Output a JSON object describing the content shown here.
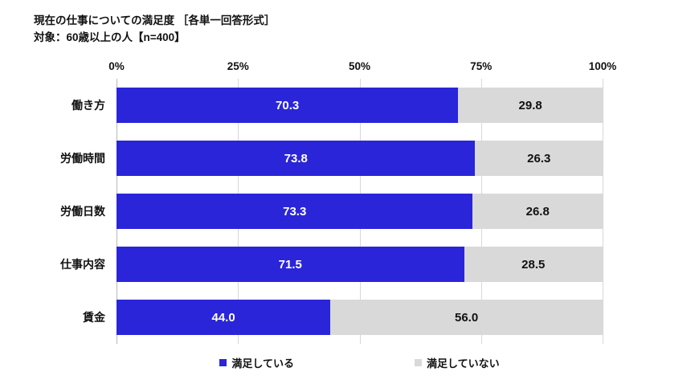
{
  "title": "現在の仕事についての満足度 ［各単一回答形式］",
  "subtitle": "対象：60歳以上の人【n=400】",
  "chart_data": {
    "type": "bar",
    "orientation": "horizontal",
    "stacked": true,
    "title": "現在の仕事についての満足度 ［各単一回答形式］",
    "subtitle": "対象：60歳以上の人【n=400】",
    "categories": [
      "働き方",
      "労働時間",
      "労働日数",
      "仕事内容",
      "賃金"
    ],
    "series": [
      {
        "name": "満足している",
        "color": "#2a25d8",
        "values": [
          70.3,
          73.8,
          73.3,
          71.5,
          44.0
        ],
        "labels": [
          "70.3",
          "73.8",
          "73.3",
          "71.5",
          "44.0"
        ]
      },
      {
        "name": "満足していない",
        "color": "#d9d9d9",
        "values": [
          29.8,
          26.3,
          26.8,
          28.5,
          56.0
        ],
        "labels": [
          "29.8",
          "26.3",
          "26.8",
          "28.5",
          "56.0"
        ]
      }
    ],
    "xticks": [
      "0%",
      "25%",
      "50%",
      "75%",
      "100%"
    ],
    "xlim": [
      0,
      100
    ],
    "legend_position": "bottom",
    "grid": true,
    "value_labels": true
  }
}
